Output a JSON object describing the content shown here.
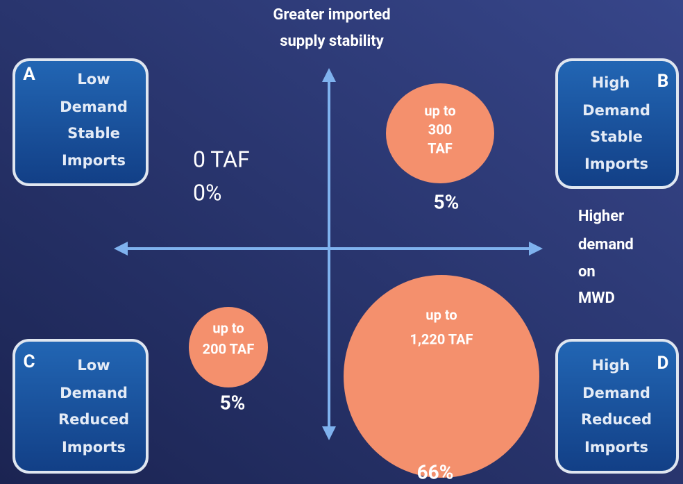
{
  "vertical_axis_label": {
    "lines": [
      "Greater imported",
      "supply stability"
    ]
  },
  "horizontal_axis_label": {
    "lines": [
      "Higher",
      "demand",
      "on",
      "MWD"
    ]
  },
  "quadrants": [
    {
      "letter": "A",
      "lines": [
        "Low",
        "Demand",
        "Stable",
        "Imports"
      ]
    },
    {
      "letter": "B",
      "lines": [
        "High",
        "Demand",
        "Stable",
        "Imports"
      ]
    },
    {
      "letter": "C",
      "lines": [
        "Low",
        "Demand",
        "Reduced",
        "Imports"
      ]
    },
    {
      "letter": "D",
      "lines": [
        "High",
        "Demand",
        "Reduced",
        "Imports"
      ]
    }
  ],
  "bubbles": [
    {
      "amount_lines": [
        "up to",
        "300",
        "TAF"
      ],
      "share": "5%"
    },
    {
      "amount_lines": [
        "up to",
        "200 TAF"
      ],
      "share": "5%"
    },
    {
      "amount_lines": [
        "up to",
        "1,220 TAF"
      ],
      "share": "66%"
    }
  ],
  "empty_quadrant": {
    "amount": "0 TAF",
    "share": "0%"
  }
}
